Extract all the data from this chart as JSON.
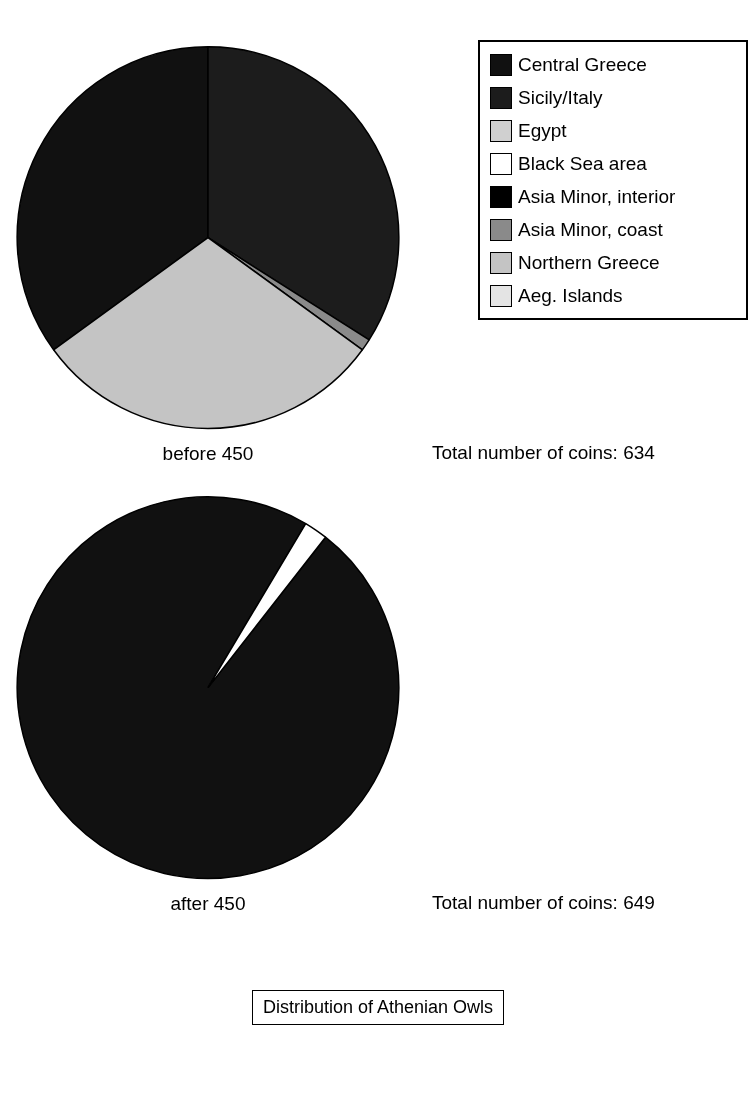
{
  "chart_data": [
    {
      "type": "pie",
      "title": "before 450",
      "categories": [
        "Central Greece",
        "Sicily/Italy",
        "Egypt",
        "Black Sea area",
        "Asia Minor, interior",
        "Asia Minor, coast",
        "Northern Greece",
        "Aeg. Islands"
      ],
      "values": [
        35,
        34,
        0,
        0,
        0,
        1,
        30,
        0
      ],
      "colors": [
        "#111111",
        "#1c1c1c",
        "#d0d0d0",
        "#ffffff",
        "#000000",
        "#8a8a8a",
        "#c4c4c4",
        "#e4e4e4"
      ],
      "legend": "right",
      "annotations": [
        "Total number of coins: 634"
      ]
    },
    {
      "type": "pie",
      "title": "after 450",
      "categories": [
        null,
        null,
        null,
        null,
        null,
        null,
        null,
        null
      ],
      "values": [
        98,
        0,
        0,
        2,
        0,
        0,
        0,
        0
      ],
      "colors": [
        "#111111",
        "#1c1c1c",
        "#d0d0d0",
        "#ffffff",
        "#000000",
        "#8a8a8a",
        "#c4c4c4",
        "#e4e4e4"
      ],
      "annotations": [
        "Total number of coins: 649",
        "Distribution of Athenian Owls"
      ]
    }
  ]
}
